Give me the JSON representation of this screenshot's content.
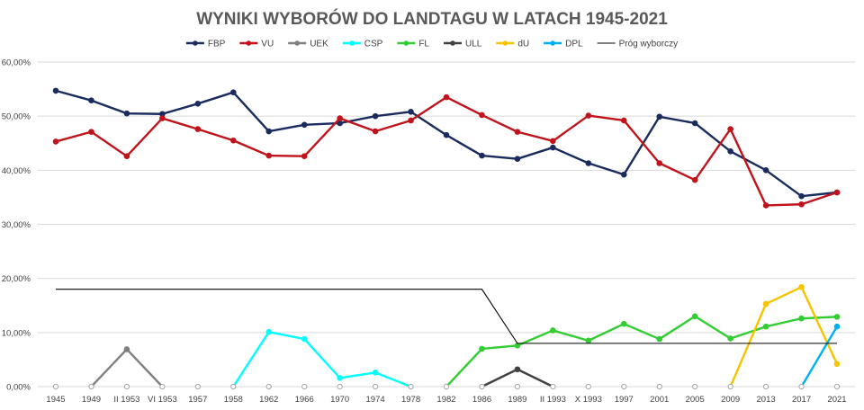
{
  "chart_data": {
    "type": "line",
    "title": "WYNIKI WYBORÓW DO LANDTAGU W LATACH 1945-2021",
    "xlabel": "",
    "ylabel": "",
    "ylim": [
      0,
      60
    ],
    "yticks": [
      "0,00%",
      "10,00%",
      "20,00%",
      "30,00%",
      "40,00%",
      "50,00%",
      "60,00%"
    ],
    "grid": true,
    "legend_position": "top",
    "categories": [
      "1945",
      "1949",
      "II 1953",
      "VI 1953",
      "1957",
      "1958",
      "1962",
      "1966",
      "1970",
      "1974",
      "1978",
      "1982",
      "1986",
      "1989",
      "II 1993",
      "X 1993",
      "1997",
      "2001",
      "2005",
      "2009",
      "2013",
      "2017",
      "2021"
    ],
    "series": [
      {
        "name": "FBP",
        "color": "#1a2b5e",
        "values": [
          54.7,
          52.9,
          50.5,
          50.4,
          52.3,
          54.4,
          47.2,
          48.4,
          48.7,
          50.0,
          50.8,
          46.5,
          42.7,
          42.1,
          44.2,
          41.3,
          39.2,
          49.9,
          48.7,
          43.5,
          40.0,
          35.2,
          35.9
        ]
      },
      {
        "name": "VU",
        "color": "#c0141c",
        "values": [
          45.3,
          47.1,
          42.6,
          49.6,
          47.6,
          45.5,
          42.7,
          42.6,
          49.6,
          47.2,
          49.2,
          53.5,
          50.2,
          47.1,
          45.4,
          50.1,
          49.2,
          41.3,
          38.2,
          47.6,
          33.5,
          33.7,
          35.9
        ]
      },
      {
        "name": "UEK",
        "color": "#808080",
        "values": [
          0,
          0,
          6.9,
          0,
          0,
          0,
          0,
          0,
          0,
          0,
          0,
          0,
          0,
          0,
          0,
          0,
          0,
          0,
          0,
          0,
          0,
          0,
          0
        ]
      },
      {
        "name": "CSP",
        "color": "#00ffff",
        "values": [
          0,
          0,
          0,
          0,
          0,
          0,
          10.1,
          8.8,
          1.6,
          2.6,
          0,
          0,
          0,
          0,
          0,
          0,
          0,
          0,
          0,
          0,
          0,
          0,
          0
        ]
      },
      {
        "name": "FL",
        "color": "#33cc33",
        "values": [
          0,
          0,
          0,
          0,
          0,
          0,
          0,
          0,
          0,
          0,
          0,
          0,
          7.0,
          7.6,
          10.4,
          8.5,
          11.6,
          8.8,
          13.0,
          8.9,
          11.1,
          12.6,
          12.9
        ]
      },
      {
        "name": "ULL",
        "color": "#404040",
        "values": [
          0,
          0,
          0,
          0,
          0,
          0,
          0,
          0,
          0,
          0,
          0,
          0,
          0,
          3.2,
          0,
          0,
          0,
          0,
          0,
          0,
          0,
          0,
          0
        ]
      },
      {
        "name": "dU",
        "color": "#f5c400",
        "values": [
          0,
          0,
          0,
          0,
          0,
          0,
          0,
          0,
          0,
          0,
          0,
          0,
          0,
          0,
          0,
          0,
          0,
          0,
          0,
          0,
          15.3,
          18.4,
          4.2
        ]
      },
      {
        "name": "DPL",
        "color": "#00b0f0",
        "values": [
          0,
          0,
          0,
          0,
          0,
          0,
          0,
          0,
          0,
          0,
          0,
          0,
          0,
          0,
          0,
          0,
          0,
          0,
          0,
          0,
          0,
          0,
          11.1
        ]
      },
      {
        "name": "Próg wyborczy",
        "color": "#000000",
        "values": [
          18,
          18,
          18,
          18,
          18,
          18,
          18,
          18,
          18,
          18,
          18,
          18,
          18,
          8,
          8,
          8,
          8,
          8,
          8,
          8,
          8,
          8,
          8
        ]
      }
    ]
  }
}
